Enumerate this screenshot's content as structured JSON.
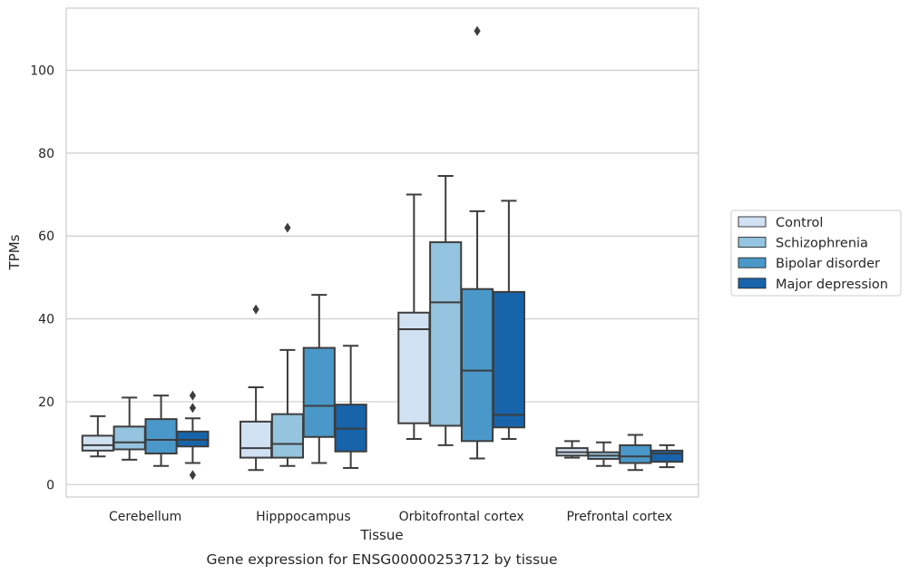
{
  "chart_data": {
    "type": "box",
    "xlabel": "Tissue",
    "ylabel": "TPMs",
    "caption": "Gene expression for ENSG00000253712 by tissue",
    "ylim": [
      -3,
      115
    ],
    "yticks": [
      0,
      20,
      40,
      60,
      80,
      100
    ],
    "grid": true,
    "legend_position": "right",
    "categories": [
      "Cerebellum",
      "Hipppocampus",
      "Orbitofrontal cortex",
      "Prefrontal cortex"
    ],
    "series": [
      {
        "name": "Control",
        "color": "#d0e1f2",
        "boxes": [
          {
            "whisker_low": 6.8,
            "q1": 8.2,
            "median": 9.5,
            "q3": 11.8,
            "whisker_high": 16.5,
            "outliers": []
          },
          {
            "whisker_low": 3.5,
            "q1": 6.5,
            "median": 8.8,
            "q3": 15.2,
            "whisker_high": 23.5,
            "outliers": [
              42.3
            ]
          },
          {
            "whisker_low": 11.0,
            "q1": 14.8,
            "median": 37.5,
            "q3": 41.5,
            "whisker_high": 70.0,
            "outliers": []
          },
          {
            "whisker_low": 6.5,
            "q1": 7.0,
            "median": 7.8,
            "q3": 8.8,
            "whisker_high": 10.5,
            "outliers": []
          }
        ]
      },
      {
        "name": "Schizophrenia",
        "color": "#94c4df",
        "boxes": [
          {
            "whisker_low": 6.0,
            "q1": 8.5,
            "median": 10.2,
            "q3": 14.0,
            "whisker_high": 21.0,
            "outliers": []
          },
          {
            "whisker_low": 4.5,
            "q1": 6.5,
            "median": 9.8,
            "q3": 17.0,
            "whisker_high": 32.5,
            "outliers": [
              62.0
            ]
          },
          {
            "whisker_low": 9.5,
            "q1": 14.2,
            "median": 44.0,
            "q3": 58.5,
            "whisker_high": 74.5,
            "outliers": []
          },
          {
            "whisker_low": 4.5,
            "q1": 6.2,
            "median": 7.0,
            "q3": 7.8,
            "whisker_high": 10.2,
            "outliers": []
          }
        ]
      },
      {
        "name": "Bipolar disorder",
        "color": "#4a98c9",
        "boxes": [
          {
            "whisker_low": 4.5,
            "q1": 7.5,
            "median": 10.8,
            "q3": 15.8,
            "whisker_high": 21.5,
            "outliers": []
          },
          {
            "whisker_low": 5.2,
            "q1": 11.5,
            "median": 19.0,
            "q3": 33.0,
            "whisker_high": 45.8,
            "outliers": []
          },
          {
            "whisker_low": 6.3,
            "q1": 10.5,
            "median": 27.5,
            "q3": 47.2,
            "whisker_high": 66.0,
            "outliers": [
              109.5
            ]
          },
          {
            "whisker_low": 3.5,
            "q1": 5.2,
            "median": 6.8,
            "q3": 9.5,
            "whisker_high": 12.0,
            "outliers": []
          }
        ]
      },
      {
        "name": "Major depression",
        "color": "#1764ab",
        "boxes": [
          {
            "whisker_low": 5.2,
            "q1": 9.2,
            "median": 10.8,
            "q3": 12.8,
            "whisker_high": 16.0,
            "outliers": [
              21.5,
              18.5,
              2.3
            ]
          },
          {
            "whisker_low": 4.0,
            "q1": 8.0,
            "median": 13.5,
            "q3": 19.3,
            "whisker_high": 33.5,
            "outliers": []
          },
          {
            "whisker_low": 11.0,
            "q1": 13.8,
            "median": 16.8,
            "q3": 46.5,
            "whisker_high": 68.5,
            "outliers": []
          },
          {
            "whisker_low": 4.2,
            "q1": 5.5,
            "median": 7.5,
            "q3": 8.2,
            "whisker_high": 9.5,
            "outliers": []
          }
        ]
      }
    ]
  }
}
